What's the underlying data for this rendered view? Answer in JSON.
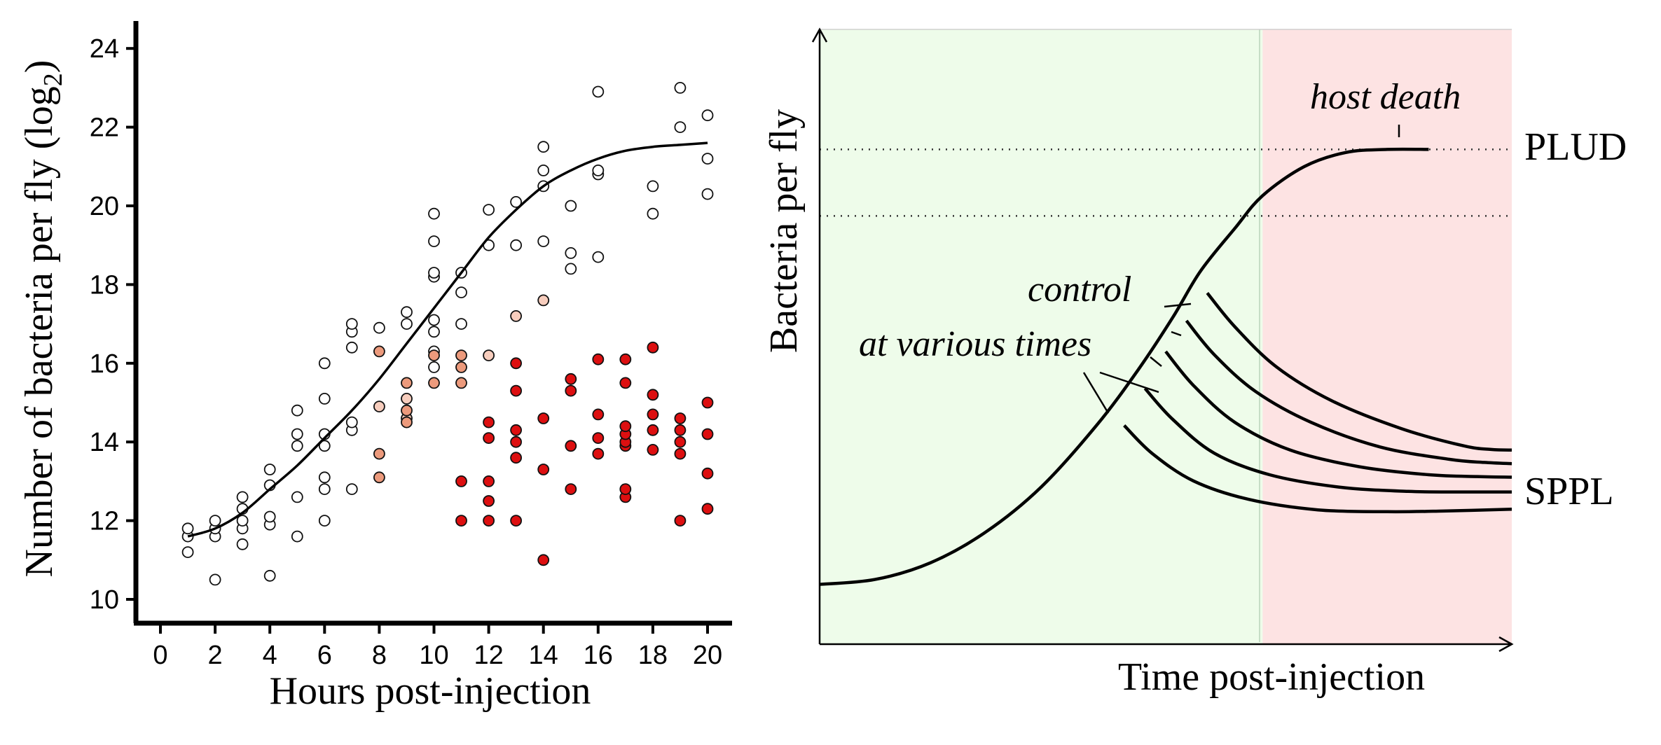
{
  "chart_data": [
    {
      "type": "scatter",
      "xlabel": "Hours post-injection",
      "ylabel": "Number of bacteria per fly (log",
      "ylabel_sub": "2",
      "ylabel_close": ")",
      "xlim": [
        -0.9,
        21
      ],
      "ylim": [
        9.3,
        24.8
      ],
      "xticks": [
        0,
        2,
        4,
        6,
        8,
        10,
        12,
        14,
        16,
        18,
        20
      ],
      "yticks": [
        10,
        12,
        14,
        16,
        18,
        20,
        22,
        24
      ],
      "grid": false,
      "colors": {
        "open": "#ffffff",
        "pale": "#f7cdbd",
        "salmon": "#ec9a7c",
        "red": "#dd0f10",
        "edge": "#111111"
      },
      "fit_curve": {
        "x": [
          1,
          2,
          3,
          4,
          5,
          6,
          7,
          8,
          9,
          10,
          11,
          12,
          13,
          14,
          15,
          16,
          17,
          18,
          19,
          20
        ],
        "y": [
          11.6,
          11.8,
          12.2,
          12.8,
          13.4,
          14.1,
          14.8,
          15.6,
          16.5,
          17.4,
          18.3,
          19.2,
          19.9,
          20.5,
          20.9,
          21.2,
          21.4,
          21.5,
          21.55,
          21.6
        ]
      },
      "points": {
        "open": [
          [
            1,
            11.2
          ],
          [
            1,
            11.6
          ],
          [
            1,
            11.8
          ],
          [
            2,
            10.5
          ],
          [
            2,
            11.6
          ],
          [
            2,
            11.8
          ],
          [
            2,
            12.0
          ],
          [
            3,
            11.4
          ],
          [
            3,
            11.8
          ],
          [
            3,
            12.0
          ],
          [
            3,
            12.3
          ],
          [
            3,
            12.6
          ],
          [
            4,
            10.6
          ],
          [
            4,
            11.9
          ],
          [
            4,
            12.1
          ],
          [
            4,
            12.9
          ],
          [
            4,
            13.3
          ],
          [
            5,
            11.6
          ],
          [
            5,
            12.6
          ],
          [
            5,
            13.9
          ],
          [
            5,
            14.2
          ],
          [
            5,
            14.8
          ],
          [
            6,
            12.0
          ],
          [
            6,
            12.8
          ],
          [
            6,
            13.1
          ],
          [
            6,
            13.9
          ],
          [
            6,
            14.2
          ],
          [
            6,
            15.1
          ],
          [
            6,
            16.0
          ],
          [
            7,
            12.8
          ],
          [
            7,
            14.3
          ],
          [
            7,
            14.5
          ],
          [
            7,
            16.4
          ],
          [
            7,
            16.8
          ],
          [
            7,
            17.0
          ],
          [
            8,
            16.9
          ],
          [
            9,
            17.0
          ],
          [
            9,
            17.3
          ],
          [
            10,
            15.9
          ],
          [
            10,
            16.3
          ],
          [
            10,
            16.8
          ],
          [
            10,
            17.1
          ],
          [
            10,
            18.2
          ],
          [
            10,
            18.3
          ],
          [
            10,
            19.1
          ],
          [
            10,
            19.8
          ],
          [
            11,
            17.0
          ],
          [
            11,
            17.8
          ],
          [
            11,
            18.3
          ],
          [
            12,
            19.0
          ],
          [
            12,
            19.9
          ],
          [
            13,
            19.0
          ],
          [
            13,
            20.1
          ],
          [
            14,
            19.1
          ],
          [
            14,
            20.5
          ],
          [
            14,
            20.9
          ],
          [
            14,
            21.5
          ],
          [
            15,
            18.4
          ],
          [
            15,
            18.8
          ],
          [
            15,
            20.0
          ],
          [
            16,
            18.7
          ],
          [
            16,
            20.8
          ],
          [
            16,
            20.9
          ],
          [
            16,
            22.9
          ],
          [
            18,
            19.8
          ],
          [
            18,
            20.5
          ],
          [
            19,
            22.0
          ],
          [
            19,
            23.0
          ],
          [
            20,
            20.3
          ],
          [
            20,
            21.2
          ],
          [
            20,
            22.3
          ]
        ],
        "pale": [
          [
            8,
            14.9
          ],
          [
            9,
            14.6
          ],
          [
            9,
            15.1
          ],
          [
            12,
            16.2
          ],
          [
            13,
            17.2
          ],
          [
            14,
            17.6
          ]
        ],
        "salmon": [
          [
            8,
            13.1
          ],
          [
            8,
            13.7
          ],
          [
            8,
            16.3
          ],
          [
            9,
            14.5
          ],
          [
            9,
            14.8
          ],
          [
            9,
            15.5
          ],
          [
            10,
            15.5
          ],
          [
            10,
            16.2
          ],
          [
            11,
            15.5
          ],
          [
            11,
            15.9
          ],
          [
            11,
            16.2
          ]
        ],
        "red": [
          [
            11,
            12.0
          ],
          [
            11,
            13.0
          ],
          [
            12,
            12.0
          ],
          [
            12,
            12.5
          ],
          [
            12,
            13.0
          ],
          [
            12,
            14.1
          ],
          [
            12,
            14.5
          ],
          [
            13,
            12.0
          ],
          [
            13,
            13.6
          ],
          [
            13,
            14.0
          ],
          [
            13,
            14.3
          ],
          [
            13,
            15.3
          ],
          [
            13,
            16.0
          ],
          [
            14,
            11.0
          ],
          [
            14,
            13.3
          ],
          [
            14,
            14.6
          ],
          [
            15,
            12.8
          ],
          [
            15,
            13.9
          ],
          [
            15,
            15.3
          ],
          [
            15,
            15.6
          ],
          [
            16,
            13.7
          ],
          [
            16,
            14.1
          ],
          [
            16,
            14.7
          ],
          [
            16,
            16.1
          ],
          [
            17,
            12.6
          ],
          [
            17,
            12.8
          ],
          [
            17,
            13.9
          ],
          [
            17,
            14.0
          ],
          [
            17,
            14.2
          ],
          [
            17,
            14.4
          ],
          [
            17,
            15.5
          ],
          [
            17,
            16.1
          ],
          [
            18,
            13.8
          ],
          [
            18,
            14.3
          ],
          [
            18,
            14.7
          ],
          [
            18,
            15.2
          ],
          [
            18,
            16.4
          ],
          [
            19,
            12.0
          ],
          [
            19,
            13.7
          ],
          [
            19,
            14.0
          ],
          [
            19,
            14.3
          ],
          [
            19,
            14.6
          ],
          [
            20,
            12.3
          ],
          [
            20,
            13.2
          ],
          [
            20,
            14.2
          ],
          [
            20,
            15.0
          ]
        ]
      }
    },
    {
      "type": "line",
      "xlabel": "Time post-injection",
      "ylabel": "Bacteria per fly",
      "xlim": [
        0,
        100
      ],
      "ylim": [
        0,
        100
      ],
      "shaded_regions": [
        {
          "x_from": 0,
          "x_to": 64,
          "color": "#eefcea"
        },
        {
          "x_from": 64,
          "x_to": 100,
          "color": "#fde3e3"
        }
      ],
      "reference_lines": [
        {
          "label": "PLUD",
          "y": 80.3
        },
        {
          "y": 69.5
        }
      ],
      "growth_curve": {
        "x": [
          0,
          8,
          16,
          24,
          32,
          40,
          46,
          51,
          55,
          60,
          64,
          70,
          76,
          82,
          88
        ],
        "y": [
          9.7,
          10.5,
          13.2,
          18.2,
          25.5,
          35.5,
          44.5,
          53.0,
          60.5,
          67.5,
          72.8,
          77.5,
          79.8,
          80.3,
          80.3
        ]
      },
      "treatment_curves": [
        {
          "x": [
            44,
            48,
            54,
            62,
            72,
            82,
            90,
            100
          ],
          "y": [
            35.5,
            31.0,
            26.5,
            23.5,
            21.8,
            21.5,
            21.6,
            21.9
          ]
        },
        {
          "x": [
            47,
            51,
            57,
            65,
            75,
            85,
            93,
            100
          ],
          "y": [
            41.5,
            36.5,
            31.0,
            27.5,
            25.5,
            24.8,
            24.7,
            24.7
          ]
        },
        {
          "x": [
            50,
            54,
            60,
            68,
            78,
            88,
            95,
            100
          ],
          "y": [
            47.5,
            42.0,
            36.0,
            31.5,
            28.8,
            27.5,
            27.2,
            27.1
          ]
        },
        {
          "x": [
            53,
            57,
            63,
            71,
            81,
            91,
            96,
            100
          ],
          "y": [
            52.5,
            47.0,
            41.0,
            36.0,
            32.0,
            30.0,
            29.5,
            29.3
          ]
        },
        {
          "x": [
            56,
            60,
            66,
            74,
            84,
            93,
            97,
            100
          ],
          "y": [
            57.0,
            51.5,
            45.0,
            39.5,
            35.0,
            32.2,
            31.6,
            31.5
          ]
        }
      ],
      "annotations": {
        "host_death": "host death",
        "control_line1": "control",
        "control_line2": "at various times",
        "plud": "PLUD",
        "sppl": "SPPL"
      }
    }
  ]
}
